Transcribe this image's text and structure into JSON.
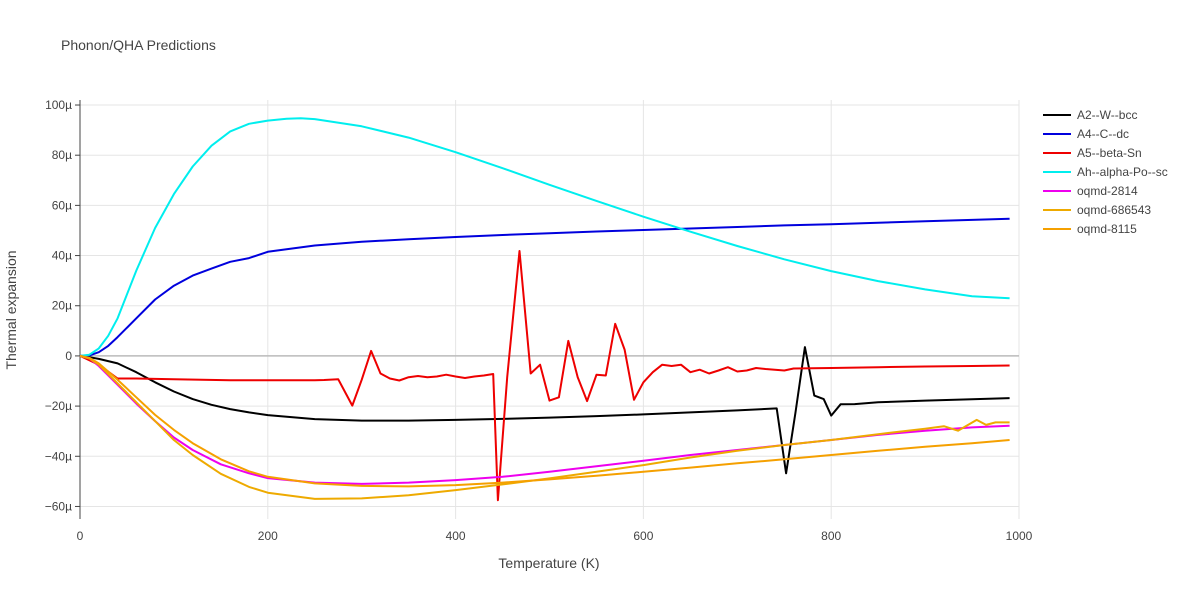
{
  "chart_data": {
    "type": "line",
    "title": "Phonon/QHA Predictions",
    "xlabel": "Temperature (K)",
    "ylabel": "Thermal expansion",
    "xlim": [
      0,
      1000
    ],
    "ylim": [
      -6.5e-05,
      0.000102
    ],
    "x_ticks": [
      0,
      200,
      400,
      600,
      800,
      1000
    ],
    "x_tick_labels": [
      "0",
      "200",
      "400",
      "600",
      "800",
      "1000"
    ],
    "y_ticks": [
      -6e-05,
      -4e-05,
      -2e-05,
      0,
      2e-05,
      4e-05,
      6e-05,
      8e-05,
      0.0001
    ],
    "y_tick_labels": [
      "−60µ",
      "−40µ",
      "−20µ",
      "0",
      "20µ",
      "40µ",
      "60µ",
      "80µ",
      "100µ"
    ],
    "grid": true,
    "legend_position": "right",
    "series": [
      {
        "name": "A2--W--bcc",
        "color": "#000000",
        "x": [
          0,
          10,
          20,
          40,
          60,
          80,
          100,
          120,
          140,
          160,
          180,
          200,
          250,
          300,
          350,
          400,
          450,
          500,
          550,
          600,
          650,
          700,
          742,
          752,
          762,
          772,
          782,
          792,
          800,
          810,
          825,
          850,
          900,
          950,
          990
        ],
        "y": [
          0,
          -5e-07,
          -1.2e-06,
          -3e-06,
          -6.5e-06,
          -1.05e-05,
          -1.42e-05,
          -1.72e-05,
          -1.95e-05,
          -2.12e-05,
          -2.25e-05,
          -2.36e-05,
          -2.52e-05,
          -2.58e-05,
          -2.58e-05,
          -2.55e-05,
          -2.51e-05,
          -2.46e-05,
          -2.4e-05,
          -2.33e-05,
          -2.25e-05,
          -2.17e-05,
          -2.09e-05,
          -4.68e-05,
          -2.25e-05,
          3.5e-06,
          -1.58e-05,
          -1.72e-05,
          -2.38e-05,
          -1.93e-05,
          -1.92e-05,
          -1.85e-05,
          -1.78e-05,
          -1.73e-05,
          -1.68e-05
        ]
      },
      {
        "name": "A4--C--dc",
        "color": "#0000dd",
        "x": [
          0,
          10,
          20,
          30,
          40,
          60,
          80,
          100,
          120,
          140,
          160,
          180,
          200,
          250,
          300,
          350,
          400,
          450,
          500,
          550,
          600,
          650,
          700,
          750,
          800,
          850,
          900,
          950,
          990
        ],
        "y": [
          0,
          2e-07,
          1.5e-06,
          4e-06,
          7.5e-06,
          1.5e-05,
          2.25e-05,
          2.8e-05,
          3.2e-05,
          3.48e-05,
          3.75e-05,
          3.9e-05,
          4.15e-05,
          4.4e-05,
          4.55e-05,
          4.65e-05,
          4.74e-05,
          4.82e-05,
          4.89e-05,
          4.96e-05,
          5.02e-05,
          5.08e-05,
          5.14e-05,
          5.2e-05,
          5.25e-05,
          5.31e-05,
          5.37e-05,
          5.42e-05,
          5.47e-05
        ]
      },
      {
        "name": "A5--beta-Sn",
        "color": "#ee0000",
        "x": [
          0,
          20,
          40,
          60,
          100,
          160,
          200,
          250,
          260,
          275,
          290,
          300,
          310,
          320,
          330,
          340,
          350,
          360,
          370,
          380,
          390,
          400,
          410,
          420,
          430,
          440,
          445,
          455,
          468,
          480,
          490,
          500,
          510,
          520,
          530,
          540,
          550,
          560,
          570,
          580,
          590,
          600,
          610,
          620,
          630,
          640,
          650,
          660,
          670,
          680,
          690,
          700,
          710,
          720,
          730,
          740,
          750,
          760,
          800,
          850,
          900,
          950,
          990
        ],
        "y": [
          0,
          -3.5e-06,
          -9e-06,
          -9e-06,
          -9.3e-06,
          -9.7e-06,
          -9.7e-06,
          -9.7e-06,
          -9.6e-06,
          -9.3e-06,
          -1.98e-05,
          -9.5e-06,
          2e-06,
          -7e-06,
          -9e-06,
          -9.8e-06,
          -8.5e-06,
          -8e-06,
          -8.5e-06,
          -8.2e-06,
          -7.5e-06,
          -8.2e-06,
          -8.8e-06,
          -8.2e-06,
          -7.8e-06,
          -7.2e-06,
          -5.75e-05,
          -8.5e-06,
          4.18e-05,
          -7e-06,
          -3.5e-06,
          -1.78e-05,
          -1.65e-05,
          6e-06,
          -8.5e-06,
          -1.8e-05,
          -7.5e-06,
          -7.8e-06,
          1.28e-05,
          2.5e-06,
          -1.75e-05,
          -1.05e-05,
          -6.5e-06,
          -3.5e-06,
          -4e-06,
          -3.5e-06,
          -6.5e-06,
          -5.5e-06,
          -7e-06,
          -5.8e-06,
          -4.5e-06,
          -6.2e-06,
          -5.8e-06,
          -4.8e-06,
          -5.2e-06,
          -5.5e-06,
          -5.8e-06,
          -5e-06,
          -4.8e-06,
          -4.5e-06,
          -4.2e-06,
          -4e-06,
          -3.8e-06
        ]
      },
      {
        "name": "Ah--alpha-Po--sc",
        "color": "#00eeee",
        "x": [
          0,
          10,
          20,
          30,
          40,
          60,
          80,
          100,
          120,
          140,
          160,
          180,
          200,
          220,
          235,
          250,
          300,
          350,
          400,
          450,
          500,
          550,
          600,
          650,
          700,
          750,
          800,
          850,
          900,
          950,
          990
        ],
        "y": [
          0,
          5e-07,
          3e-06,
          8e-06,
          1.5e-05,
          3.4e-05,
          5.1e-05,
          6.45e-05,
          7.55e-05,
          8.38e-05,
          8.95e-05,
          9.25e-05,
          9.38e-05,
          9.45e-05,
          9.47e-05,
          9.44e-05,
          9.15e-05,
          8.7e-05,
          8.12e-05,
          7.48e-05,
          6.82e-05,
          6.18e-05,
          5.55e-05,
          4.95e-05,
          4.38e-05,
          3.85e-05,
          3.38e-05,
          2.98e-05,
          2.65e-05,
          2.38e-05,
          2.3e-05
        ]
      },
      {
        "name": "oqmd-2814",
        "color": "#ee00ee",
        "x": [
          0,
          10,
          20,
          40,
          60,
          80,
          100,
          120,
          150,
          180,
          200,
          250,
          300,
          350,
          400,
          450,
          500,
          550,
          600,
          650,
          700,
          750,
          800,
          850,
          900,
          950,
          990
        ],
        "y": [
          0,
          -1e-06,
          -4e-06,
          -1.15e-05,
          -1.9e-05,
          -2.6e-05,
          -3.25e-05,
          -3.75e-05,
          -4.32e-05,
          -4.68e-05,
          -4.87e-05,
          -5.05e-05,
          -5.1e-05,
          -5.05e-05,
          -4.95e-05,
          -4.82e-05,
          -4.62e-05,
          -4.4e-05,
          -4.18e-05,
          -3.95e-05,
          -3.75e-05,
          -3.55e-05,
          -3.35e-05,
          -3.15e-05,
          -2.98e-05,
          -2.85e-05,
          -2.78e-05
        ]
      },
      {
        "name": "oqmd-686543",
        "color": "#eeaa00",
        "x": [
          0,
          10,
          20,
          40,
          60,
          80,
          100,
          120,
          150,
          180,
          200,
          250,
          300,
          350,
          400,
          450,
          500,
          550,
          600,
          650,
          700,
          750,
          800,
          850,
          900,
          920,
          935,
          955,
          965,
          975,
          990
        ],
        "y": [
          0,
          -1e-06,
          -3.5e-06,
          -1.1e-05,
          -1.85e-05,
          -2.6e-05,
          -3.35e-05,
          -3.95e-05,
          -4.7e-05,
          -5.22e-05,
          -5.45e-05,
          -5.7e-05,
          -5.68e-05,
          -5.55e-05,
          -5.35e-05,
          -5.12e-05,
          -4.88e-05,
          -4.62e-05,
          -4.35e-05,
          -4.05e-05,
          -3.78e-05,
          -3.55e-05,
          -3.35e-05,
          -3.12e-05,
          -2.9e-05,
          -2.8e-05,
          -2.98e-05,
          -2.55e-05,
          -2.75e-05,
          -2.65e-05,
          -2.65e-05
        ]
      },
      {
        "name": "oqmd-8115",
        "color": "#f5a000",
        "x": [
          0,
          10,
          20,
          40,
          60,
          80,
          100,
          120,
          150,
          180,
          200,
          250,
          300,
          350,
          400,
          450,
          500,
          550,
          600,
          650,
          700,
          750,
          800,
          850,
          900,
          950,
          990
        ],
        "y": [
          0,
          -8e-07,
          -3e-06,
          -9.5e-06,
          -1.65e-05,
          -2.35e-05,
          -2.95e-05,
          -3.48e-05,
          -4.12e-05,
          -4.6e-05,
          -4.82e-05,
          -5.08e-05,
          -5.18e-05,
          -5.2e-05,
          -5.15e-05,
          -5.05e-05,
          -4.92e-05,
          -4.78e-05,
          -4.62e-05,
          -4.45e-05,
          -4.28e-05,
          -4.12e-05,
          -3.95e-05,
          -3.78e-05,
          -3.62e-05,
          -3.48e-05,
          -3.35e-05
        ]
      }
    ]
  }
}
